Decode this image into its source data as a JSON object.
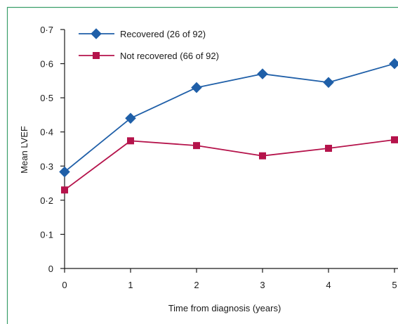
{
  "chart_data": {
    "type": "line",
    "title": "",
    "xlabel": "Time from diagnosis (years)",
    "ylabel": "Mean LVEF",
    "x": [
      0,
      1,
      2,
      3,
      4,
      5
    ],
    "x_tick_labels": [
      "0",
      "1",
      "2",
      "3",
      "4",
      "5"
    ],
    "y_ticks": [
      0,
      0.1,
      0.2,
      0.3,
      0.4,
      0.5,
      0.6,
      0.7
    ],
    "y_tick_labels": [
      "0",
      "0·1",
      "0·2",
      "0·3",
      "0·4",
      "0·5",
      "0·6",
      "0·7"
    ],
    "xlim": [
      0,
      5
    ],
    "ylim": [
      0,
      0.7
    ],
    "grid": false,
    "legend_position": "top-left",
    "series": [
      {
        "name": "Recovered (26 of 92)",
        "marker": "diamond",
        "color": "#1f5fa8",
        "values": [
          0.283,
          0.44,
          0.53,
          0.57,
          0.545,
          0.6
        ]
      },
      {
        "name": "Not recovered (66 of 92)",
        "marker": "square",
        "color": "#b5134b",
        "values": [
          0.23,
          0.374,
          0.36,
          0.33,
          0.352,
          0.377
        ]
      }
    ]
  },
  "colors": {
    "frame_border": "#3a9e6a",
    "axis": "#1a1a1a"
  }
}
